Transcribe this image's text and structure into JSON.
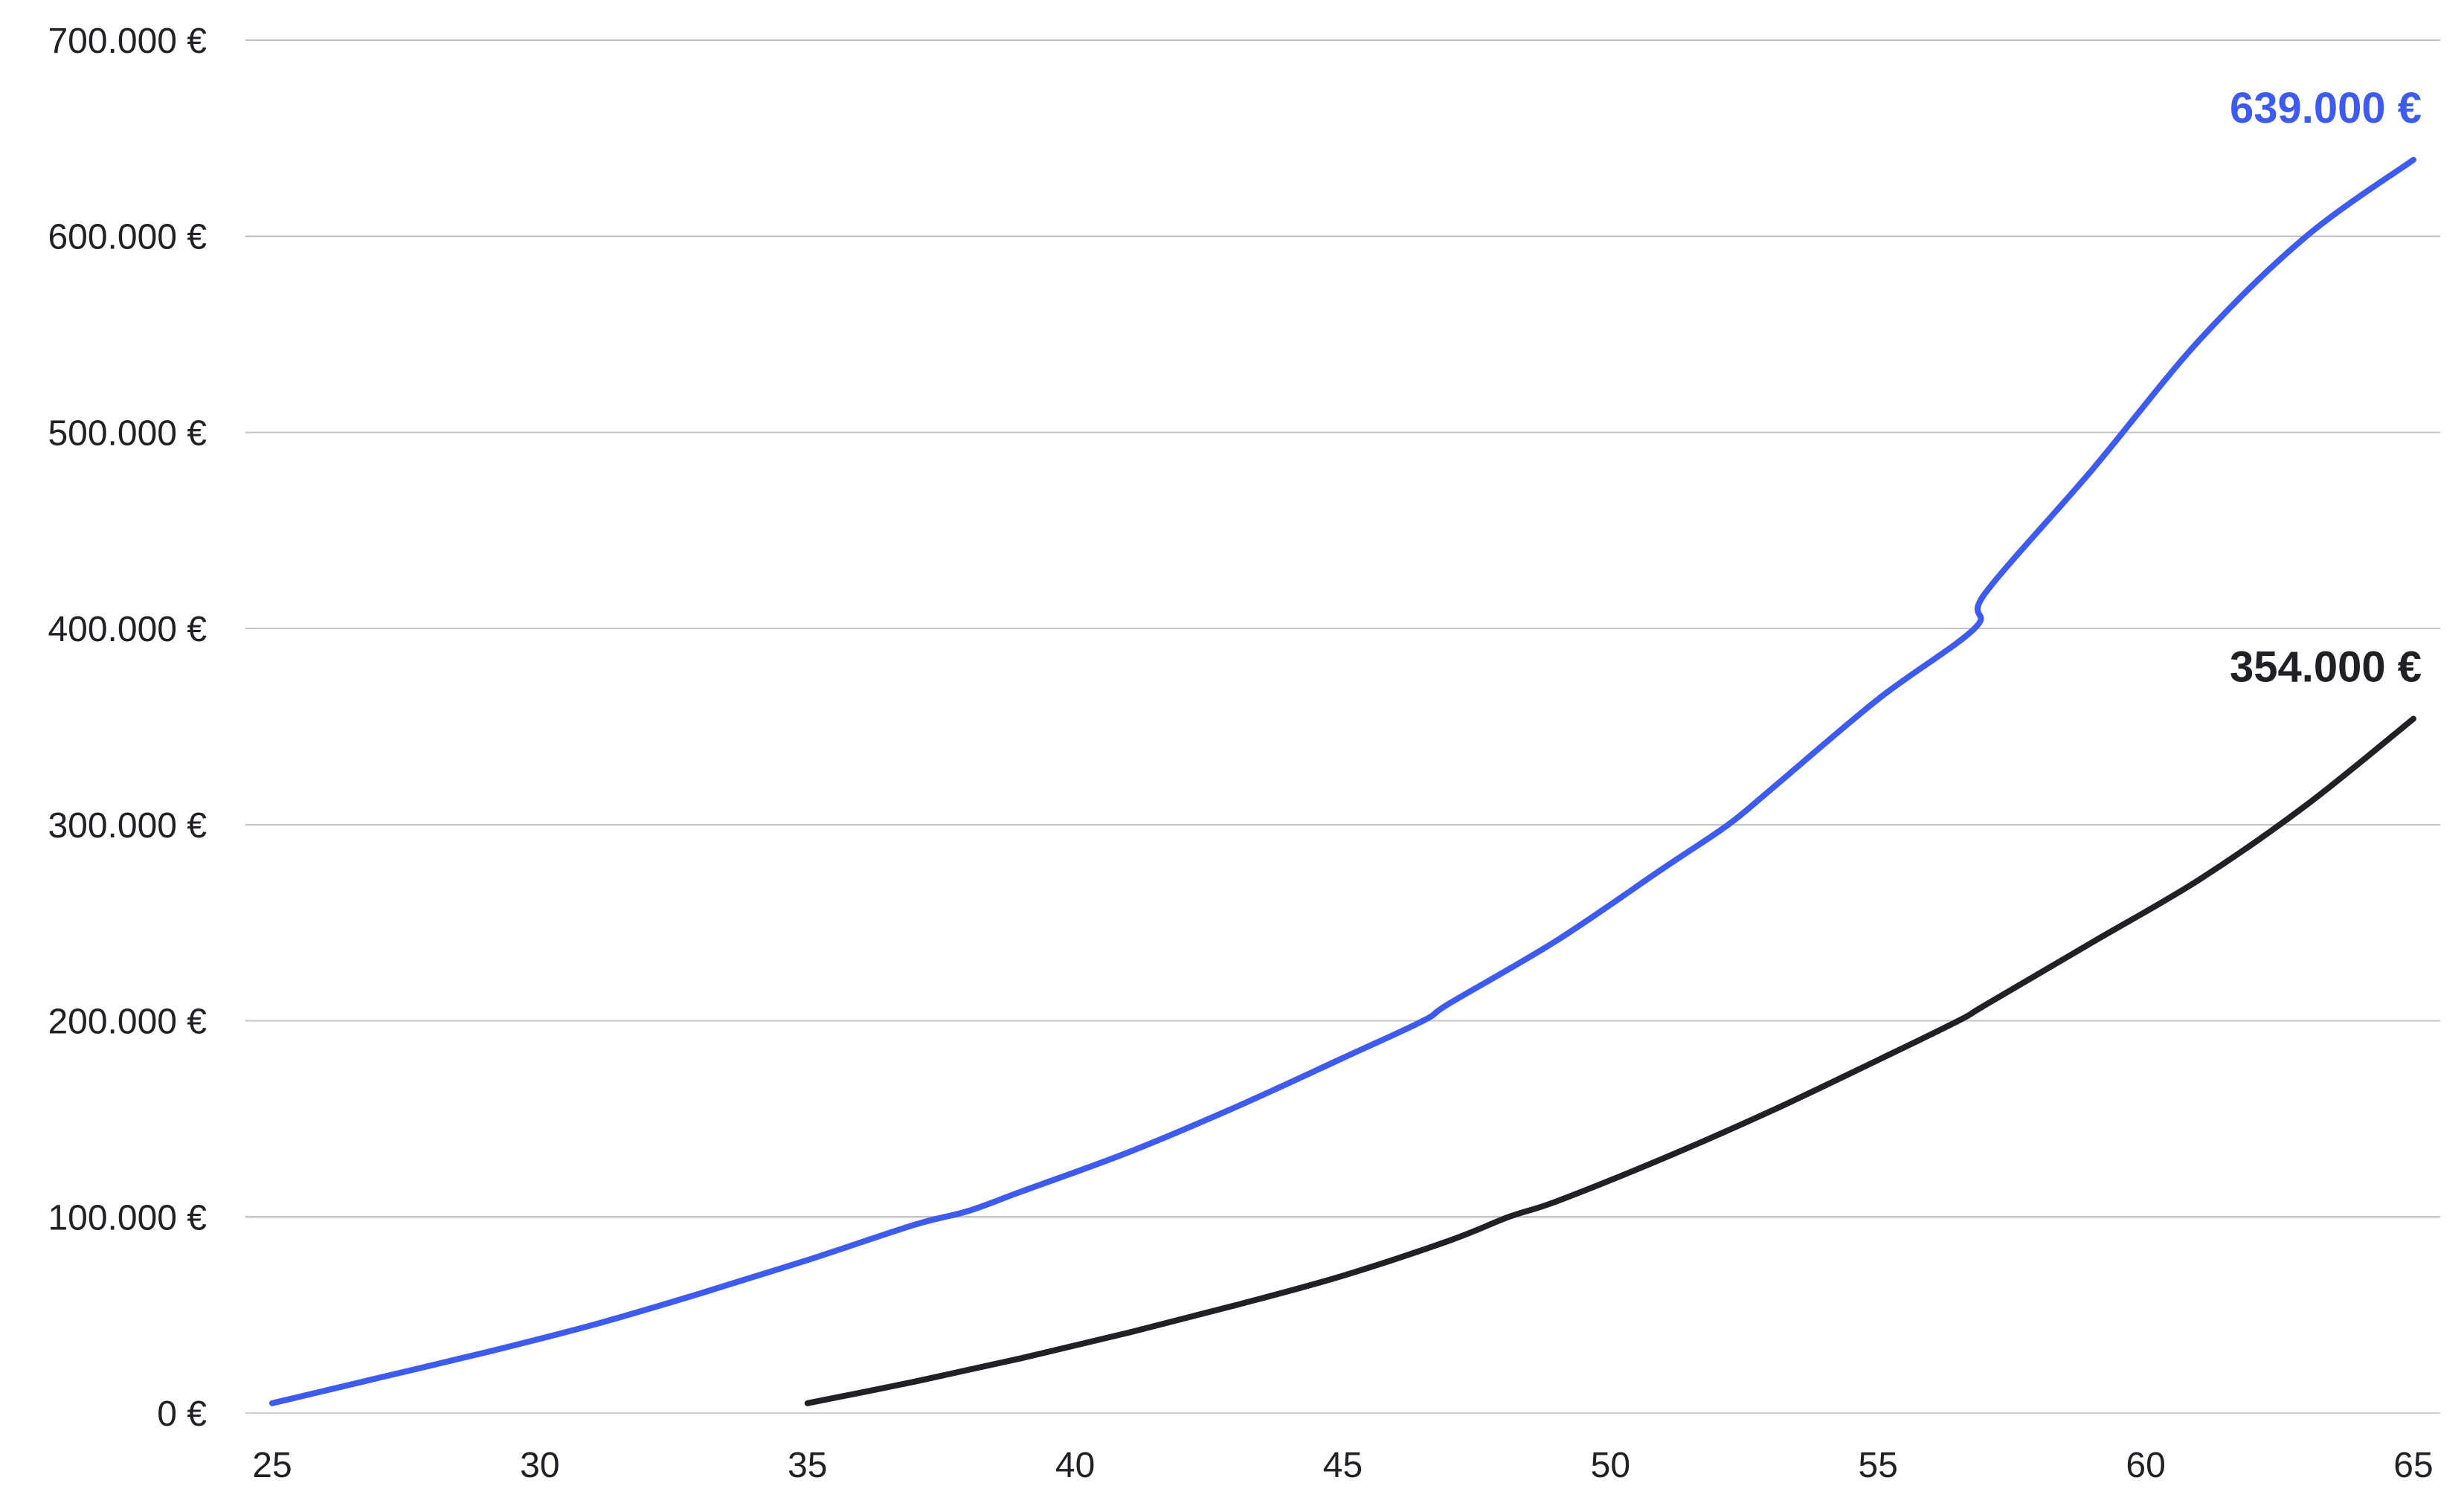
{
  "chart_data": {
    "type": "line",
    "title": "",
    "xlabel": "",
    "ylabel": "",
    "xlim": [
      25,
      65
    ],
    "ylim": [
      0,
      700000
    ],
    "x_ticks": [
      "25",
      "30",
      "35",
      "40",
      "45",
      "50",
      "55",
      "60",
      "65"
    ],
    "x_tick_values": [
      25,
      30,
      35,
      40,
      45,
      50,
      55,
      60,
      65
    ],
    "y_ticks": [
      "0 €",
      "100.000 €",
      "200.000 €",
      "300.000 €",
      "400.000 €",
      "500.000 €",
      "600.000 €",
      "700.000 €"
    ],
    "y_tick_values": [
      0,
      100000,
      200000,
      300000,
      400000,
      500000,
      600000,
      700000
    ],
    "grid": true,
    "legend": "none",
    "series": [
      {
        "color": "#3d5af1",
        "end_label": "639.000 €",
        "x": [
          25,
          27,
          29,
          31,
          33,
          35,
          37,
          38,
          39,
          41,
          43,
          45,
          46.5,
          47,
          49,
          51,
          52.2,
          53,
          55,
          56.8,
          57,
          59,
          61,
          63,
          65
        ],
        "y": [
          5000,
          18000,
          31000,
          45000,
          61000,
          78000,
          96000,
          103000,
          113000,
          133000,
          156000,
          181000,
          200000,
          209000,
          241000,
          278000,
          300000,
          318000,
          364000,
          400000,
          418000,
          481000,
          547000,
          600000,
          639000
        ]
      },
      {
        "color": "#202124",
        "end_label": "354.000 €",
        "x": [
          35,
          37,
          39,
          41,
          43,
          45,
          47,
          48.1,
          49,
          51,
          53,
          55,
          56.5,
          57,
          59,
          61,
          63,
          65
        ],
        "y": [
          5000,
          16000,
          28000,
          41000,
          55000,
          70000,
          88000,
          100000,
          108000,
          130000,
          154000,
          180000,
          200000,
          208000,
          240000,
          272000,
          310000,
          354000
        ]
      }
    ]
  }
}
